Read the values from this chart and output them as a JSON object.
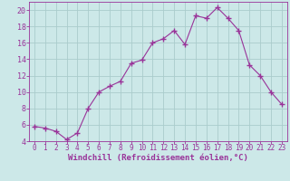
{
  "x": [
    0,
    1,
    2,
    3,
    4,
    5,
    6,
    7,
    8,
    9,
    10,
    11,
    12,
    13,
    14,
    15,
    16,
    17,
    18,
    19,
    20,
    21,
    22,
    23
  ],
  "y": [
    5.8,
    5.6,
    5.2,
    4.2,
    5.0,
    8.0,
    10.0,
    10.7,
    11.3,
    13.5,
    13.9,
    16.0,
    16.5,
    17.5,
    15.8,
    19.3,
    19.0,
    20.3,
    19.0,
    17.5,
    13.3,
    12.0,
    10.0,
    8.5
  ],
  "line_color": "#993399",
  "marker": "+",
  "marker_size": 4,
  "bg_color": "#cce8e8",
  "grid_color": "#aacccc",
  "xlabel": "Windchill (Refroidissement éolien,°C)",
  "xlim": [
    -0.5,
    23.5
  ],
  "ylim": [
    4,
    21
  ],
  "yticks": [
    4,
    6,
    8,
    10,
    12,
    14,
    16,
    18,
    20
  ],
  "xticks": [
    0,
    1,
    2,
    3,
    4,
    5,
    6,
    7,
    8,
    9,
    10,
    11,
    12,
    13,
    14,
    15,
    16,
    17,
    18,
    19,
    20,
    21,
    22,
    23
  ],
  "tick_color": "#993399",
  "label_color": "#993399",
  "axis_color": "#993399",
  "tick_fontsize": 5.5,
  "xlabel_fontsize": 6.5
}
